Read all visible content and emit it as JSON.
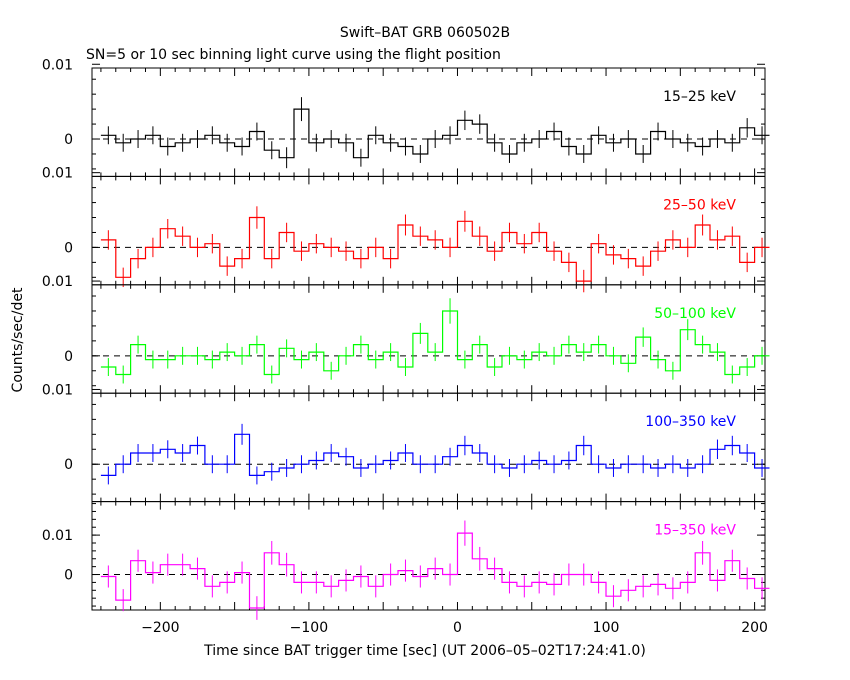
{
  "chart_data": {
    "type": "line",
    "title": "Swift–BAT GRB 060502B",
    "subtitle": "SN=5 or 10 sec binning light curve using the flight position",
    "xlabel": "Time since BAT trigger time [sec] (UT 2006–05–02T17:24:41.0)",
    "ylabel": "Counts/sec/det",
    "xlim": [
      -246,
      207
    ],
    "x_ticks": [
      -200,
      -100,
      0,
      100,
      200
    ],
    "x_tick_labels": [
      "−200",
      "−100",
      "0",
      "100",
      "200"
    ],
    "y_tick_values": [
      0,
      0.01
    ],
    "y_tick_labels": [
      "0",
      "0.01"
    ],
    "bin_edges": [
      -240,
      -230,
      -220,
      -210,
      -200,
      -190,
      -180,
      -170,
      -160,
      -150,
      -140,
      -130,
      -120,
      -110,
      -100,
      -90,
      -80,
      -70,
      -60,
      -50,
      -40,
      -30,
      -20,
      -10,
      0,
      10,
      20,
      30,
      40,
      50,
      60,
      70,
      80,
      90,
      100,
      110,
      120,
      130,
      140,
      150,
      160,
      170,
      180,
      190,
      200
    ],
    "panels": [
      {
        "name": "15–25 keV",
        "color": "#000000",
        "ylim": [
          -0.005,
          0.0095
        ],
        "values": [
          0.0005,
          -0.0005,
          0.0,
          0.0005,
          -0.001,
          -0.0005,
          0.0,
          0.0005,
          -0.0005,
          -0.001,
          0.001,
          -0.0015,
          -0.0025,
          0.004,
          -0.0005,
          0.0,
          -0.0005,
          -0.0025,
          0.0005,
          -0.0005,
          -0.001,
          -0.002,
          0.0,
          0.0005,
          0.0025,
          0.002,
          -0.0005,
          -0.002,
          -0.0005,
          0.0,
          0.001,
          -0.001,
          -0.002,
          0.0005,
          -0.0005,
          0.0,
          -0.002,
          0.001,
          0.0,
          -0.0005,
          -0.001,
          0.0,
          -0.0005,
          0.0015,
          0.0005
        ],
        "errors": [
          0.0012,
          0.0012,
          0.0012,
          0.0012,
          0.0012,
          0.0012,
          0.0012,
          0.0012,
          0.0012,
          0.0012,
          0.0012,
          0.0012,
          0.0014,
          0.0016,
          0.0012,
          0.0012,
          0.0012,
          0.0012,
          0.0012,
          0.0012,
          0.0012,
          0.0012,
          0.0012,
          0.0012,
          0.0013,
          0.0013,
          0.0012,
          0.0012,
          0.0012,
          0.0012,
          0.0012,
          0.0012,
          0.0012,
          0.0012,
          0.0012,
          0.0012,
          0.0012,
          0.0012,
          0.0012,
          0.0012,
          0.0012,
          0.0012,
          0.0012,
          0.0013,
          0.0012
        ]
      },
      {
        "name": "25–50 keV",
        "color": "#ff0000",
        "ylim": [
          -0.005,
          0.0095
        ],
        "values": [
          0.001,
          -0.004,
          -0.0015,
          0.0,
          0.0025,
          0.0015,
          0.0,
          0.0005,
          -0.0025,
          -0.0015,
          0.004,
          -0.0015,
          0.002,
          -0.0005,
          0.0005,
          0.0,
          -0.0005,
          -0.0015,
          0.0,
          -0.0015,
          0.003,
          0.0015,
          0.001,
          0.0,
          0.0035,
          0.0015,
          -0.0005,
          0.002,
          0.0005,
          0.002,
          -0.0005,
          -0.002,
          -0.0045,
          0.0005,
          -0.001,
          -0.0015,
          -0.0025,
          -0.0005,
          0.001,
          0.0,
          0.003,
          0.001,
          0.0015,
          -0.002,
          0.0
        ],
        "errors": [
          0.0013,
          0.0013,
          0.0013,
          0.0013,
          0.0013,
          0.0013,
          0.0013,
          0.0013,
          0.0013,
          0.0013,
          0.0015,
          0.0013,
          0.0013,
          0.0013,
          0.0013,
          0.0013,
          0.0013,
          0.0013,
          0.0013,
          0.0013,
          0.0014,
          0.0013,
          0.0013,
          0.0013,
          0.0014,
          0.0013,
          0.0013,
          0.0013,
          0.0013,
          0.0013,
          0.0013,
          0.0013,
          0.0015,
          0.0013,
          0.0013,
          0.0013,
          0.0013,
          0.0013,
          0.0013,
          0.0013,
          0.0014,
          0.0013,
          0.0013,
          0.0013,
          0.0013
        ]
      },
      {
        "name": "50–100 keV",
        "color": "#00ff00",
        "ylim": [
          -0.005,
          0.0095
        ],
        "values": [
          -0.0015,
          -0.0025,
          0.0015,
          -0.0005,
          -0.0005,
          0.0,
          0.0,
          -0.0005,
          0.0005,
          0.0,
          0.0015,
          -0.0025,
          0.001,
          -0.0005,
          0.0005,
          -0.002,
          0.0,
          0.0015,
          -0.0005,
          0.0005,
          -0.0015,
          0.003,
          0.0005,
          0.006,
          -0.0005,
          0.0015,
          -0.0015,
          0.0,
          -0.0005,
          0.0005,
          0.0,
          0.0015,
          0.0005,
          0.0015,
          0.0,
          -0.001,
          0.0025,
          -0.0005,
          -0.002,
          0.0035,
          0.0015,
          0.0005,
          -0.0025,
          -0.0015,
          0.0
        ],
        "errors": [
          0.0012,
          0.0012,
          0.0012,
          0.0012,
          0.0012,
          0.0012,
          0.0012,
          0.0012,
          0.0012,
          0.0012,
          0.0012,
          0.0012,
          0.0012,
          0.0012,
          0.0012,
          0.0012,
          0.0012,
          0.0012,
          0.0012,
          0.0012,
          0.0012,
          0.0014,
          0.0012,
          0.0017,
          0.0012,
          0.0012,
          0.0012,
          0.0012,
          0.0012,
          0.0012,
          0.0012,
          0.0012,
          0.0012,
          0.0012,
          0.0012,
          0.0012,
          0.0013,
          0.0012,
          0.0012,
          0.0014,
          0.0012,
          0.0012,
          0.0012,
          0.0012,
          0.0012
        ]
      },
      {
        "name": "100–350 keV",
        "color": "#0000ff",
        "ylim": [
          -0.005,
          0.0095
        ],
        "values": [
          -0.0015,
          0.0,
          0.0015,
          0.0015,
          0.002,
          0.0015,
          0.0025,
          0.0,
          0.0,
          0.004,
          -0.0015,
          -0.001,
          -0.0005,
          0.0,
          0.0005,
          0.0015,
          0.001,
          -0.0005,
          0.0,
          0.0005,
          0.0015,
          0.0,
          0.0,
          0.001,
          0.0025,
          0.0015,
          0.0,
          -0.0005,
          0.0,
          0.0005,
          0.0,
          0.0005,
          0.0025,
          0.0,
          -0.0005,
          0.0,
          0.0,
          -0.0005,
          0.0,
          -0.0005,
          0.0,
          0.002,
          0.0025,
          0.0015,
          -0.0005
        ],
        "errors": [
          0.0012,
          0.0012,
          0.0012,
          0.0012,
          0.0012,
          0.0012,
          0.0012,
          0.0012,
          0.0012,
          0.0014,
          0.0012,
          0.0012,
          0.0012,
          0.0012,
          0.0012,
          0.0012,
          0.0012,
          0.0012,
          0.0012,
          0.0012,
          0.0012,
          0.0012,
          0.0012,
          0.0012,
          0.0013,
          0.0012,
          0.0012,
          0.0012,
          0.0012,
          0.0012,
          0.0012,
          0.0012,
          0.0013,
          0.0012,
          0.0012,
          0.0012,
          0.0012,
          0.0012,
          0.0012,
          0.0012,
          0.0012,
          0.0013,
          0.0013,
          0.0012,
          0.0012
        ]
      },
      {
        "name": "15–350 keV",
        "color": "#ff00ff",
        "ylim": [
          -0.009,
          0.0185
        ],
        "values": [
          -0.0005,
          -0.0065,
          0.0035,
          0.0005,
          0.0025,
          0.0025,
          0.0015,
          -0.003,
          -0.002,
          0.0005,
          -0.0085,
          0.0055,
          0.0025,
          -0.002,
          -0.002,
          -0.003,
          -0.0015,
          -0.0005,
          -0.003,
          0.0,
          0.001,
          -0.0005,
          0.0015,
          0.0,
          0.0105,
          0.004,
          0.0015,
          -0.002,
          -0.003,
          -0.002,
          -0.0025,
          0.0,
          0.0,
          -0.002,
          -0.0055,
          -0.004,
          -0.003,
          -0.0025,
          -0.0035,
          -0.002,
          0.0055,
          -0.0015,
          0.0035,
          -0.001,
          -0.0035
        ],
        "errors": [
          0.0028,
          0.0028,
          0.0028,
          0.0028,
          0.0028,
          0.0028,
          0.0028,
          0.0028,
          0.0028,
          0.0028,
          0.003,
          0.003,
          0.003,
          0.0028,
          0.0028,
          0.0028,
          0.0028,
          0.0028,
          0.0028,
          0.0028,
          0.0028,
          0.0028,
          0.0028,
          0.0028,
          0.0032,
          0.003,
          0.0028,
          0.0028,
          0.0028,
          0.0028,
          0.0028,
          0.0028,
          0.0028,
          0.0028,
          0.0028,
          0.0028,
          0.0028,
          0.0028,
          0.0028,
          0.0028,
          0.003,
          0.0028,
          0.0028,
          0.0028,
          0.0028
        ]
      }
    ]
  }
}
